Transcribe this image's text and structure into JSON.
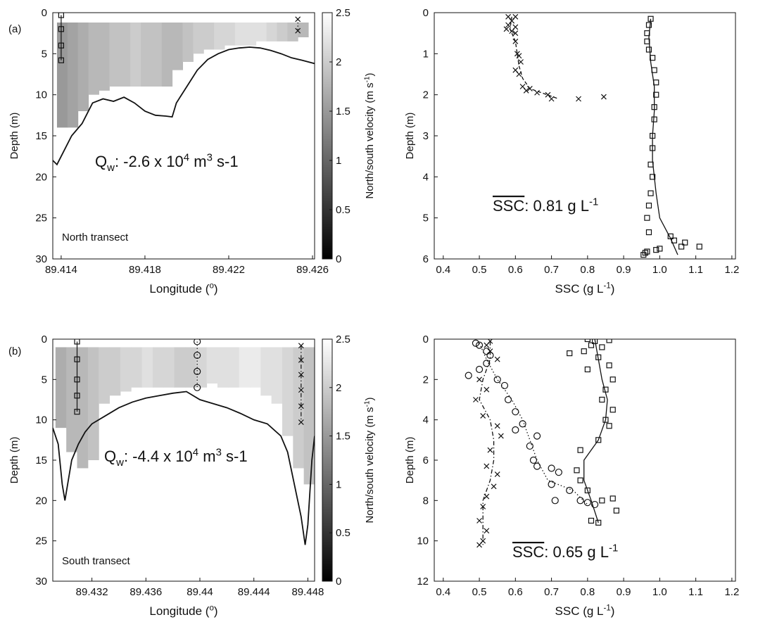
{
  "chart_data": [
    {
      "type": "transect",
      "panel_label": "(a)",
      "ylabel": "Depth (m)",
      "xlabel": [
        {
          "text": "Longitude ("
        },
        {
          "text": "o",
          "shift": "sup"
        },
        {
          "text": ")"
        }
      ],
      "annotation": [
        {
          "text": "Q"
        },
        {
          "text": "w",
          "shift": "sub"
        },
        {
          "text": ": -2.6 x 10"
        },
        {
          "text": "4",
          "shift": "sup"
        },
        {
          "text": " m"
        },
        {
          "text": "3",
          "shift": "sup"
        },
        {
          "text": " s-1"
        }
      ],
      "transect_label": "North transect",
      "xlim": [
        89.4136,
        89.4261
      ],
      "xticks": [
        89.414,
        89.418,
        89.422,
        89.426
      ],
      "ylim": [
        0,
        30
      ],
      "y_inverted": true,
      "yticks": [
        0,
        5,
        10,
        15,
        20,
        25,
        30
      ],
      "colorbar": {
        "label": [
          {
            "text": "North/south velocity (m s"
          },
          {
            "text": "-1",
            "shift": "sup"
          },
          {
            "text": ")"
          }
        ],
        "lim": [
          0,
          2.5
        ],
        "ticks": [
          0,
          0.5,
          1,
          1.5,
          2,
          2.5
        ]
      },
      "velocity": {
        "top": 1.2,
        "x": [
          89.4138,
          89.4143,
          89.4148,
          89.4153,
          89.4158,
          89.4163,
          89.4168,
          89.4173,
          89.4178,
          89.4183,
          89.4188,
          89.4193,
          89.4198,
          89.4203,
          89.4208,
          89.4213,
          89.4218,
          89.4223,
          89.4228,
          89.4233,
          89.4238,
          89.4243,
          89.4248,
          89.4253
        ],
        "bottom": [
          14,
          14,
          12,
          10,
          9.5,
          9,
          9,
          9,
          9,
          9,
          9,
          7,
          6,
          5,
          4.5,
          4.5,
          4,
          4,
          4,
          3.5,
          3.5,
          3.5,
          3.5,
          3
        ],
        "values": [
          1.5,
          1.6,
          1.7,
          1.8,
          1.8,
          1.9,
          1.9,
          2.0,
          1.9,
          1.9,
          1.8,
          1.8,
          1.9,
          2.0,
          2.0,
          2.1,
          2.1,
          2.2,
          2.2,
          2.2,
          2.1,
          2.0,
          1.9,
          1.8
        ]
      },
      "bathymetry": {
        "x": [
          89.4136,
          89.4138,
          89.414,
          89.4145,
          89.415,
          89.4155,
          89.416,
          89.4165,
          89.417,
          89.4175,
          89.418,
          89.4185,
          89.419,
          89.4193,
          89.4195,
          89.42,
          89.4205,
          89.421,
          89.4215,
          89.422,
          89.4225,
          89.423,
          89.4235,
          89.424,
          89.4245,
          89.425,
          89.4255,
          89.4261
        ],
        "y": [
          18,
          18.5,
          17.5,
          15,
          13.5,
          11,
          10.5,
          10.8,
          10.3,
          11,
          12,
          12.5,
          12.6,
          12.7,
          11,
          9,
          7,
          5.7,
          5,
          4.5,
          4.3,
          4.2,
          4.3,
          4.6,
          5,
          5.5,
          5.8,
          6.2
        ]
      },
      "stations": [
        {
          "marker": "square",
          "line": "solid",
          "x": 89.414,
          "depths": [
            0.3,
            2,
            4,
            5.8
          ]
        },
        {
          "marker": "cross",
          "line": "dotted",
          "x": 89.4253,
          "depths": [
            0.8,
            2.2
          ]
        }
      ]
    },
    {
      "type": "profile",
      "ylabel": "Depth (m)",
      "xlabel": [
        {
          "text": "SSC (g L"
        },
        {
          "text": "-1",
          "shift": "sup"
        },
        {
          "text": ")"
        }
      ],
      "annotation": [
        {
          "text": "SSC",
          "overline": true
        },
        {
          "text": ": 0.81 g L"
        },
        {
          "text": "-1",
          "shift": "sup"
        }
      ],
      "xlim": [
        0.375,
        1.21
      ],
      "xticks": [
        0.4,
        0.5,
        0.6,
        0.7,
        0.8,
        0.9,
        {
          "value": 1,
          "label": "1.0"
        },
        1.1,
        1.2
      ],
      "ylim": [
        0,
        6
      ],
      "y_inverted": true,
      "yticks": [
        0,
        1,
        2,
        3,
        4,
        5,
        6
      ],
      "series": [
        {
          "marker": "cross",
          "line": "dashed",
          "x": [
            0.58,
            0.6,
            0.59,
            0.58,
            0.6,
            0.575,
            0.59,
            0.6,
            0.6,
            0.605,
            0.61,
            0.615,
            0.6,
            0.61,
            0.62,
            0.64,
            0.63,
            0.66,
            0.69,
            0.7,
            0.775,
            0.845
          ],
          "y": [
            0.1,
            0.1,
            0.2,
            0.3,
            0.35,
            0.4,
            0.45,
            0.5,
            0.7,
            1.0,
            1.05,
            1.2,
            1.4,
            1.5,
            1.8,
            1.85,
            1.9,
            1.95,
            2.0,
            2.1,
            2.1,
            2.05
          ],
          "fit_x": [
            0.59,
            0.585,
            0.6,
            0.605,
            0.61,
            0.62,
            0.64,
            0.72
          ],
          "fit_y": [
            0.1,
            0.4,
            0.7,
            1.0,
            1.3,
            1.6,
            1.85,
            2.1
          ]
        },
        {
          "marker": "square",
          "line": "solid",
          "x": [
            0.975,
            0.97,
            0.965,
            0.965,
            0.97,
            0.98,
            0.985,
            0.99,
            0.99,
            0.985,
            0.985,
            0.98,
            0.98,
            0.975,
            0.98,
            0.975,
            0.97,
            0.965,
            0.97,
            1.04,
            1.07,
            1.11,
            1.0,
            0.99,
            0.965,
            0.96,
            0.955,
            1.03,
            1.06
          ],
          "y": [
            0.15,
            0.3,
            0.5,
            0.7,
            0.9,
            1.1,
            1.4,
            1.7,
            2.0,
            2.3,
            2.6,
            3.0,
            3.3,
            3.7,
            4.0,
            4.4,
            4.7,
            5.0,
            5.35,
            5.55,
            5.6,
            5.7,
            5.75,
            5.78,
            5.82,
            5.85,
            5.9,
            5.45,
            5.7
          ],
          "fit_x": [
            0.975,
            0.97,
            0.975,
            0.985,
            0.985,
            0.98,
            0.98,
            0.99,
            1.0,
            1.03,
            1.05
          ],
          "fit_y": [
            0.15,
            0.6,
            1.2,
            1.8,
            2.4,
            3.0,
            3.6,
            4.4,
            5.0,
            5.5,
            5.9
          ]
        }
      ]
    },
    {
      "type": "transect",
      "panel_label": "(b)",
      "ylabel": "Depth (m)",
      "xlabel": [
        {
          "text": "Longitude ("
        },
        {
          "text": "o",
          "shift": "sup"
        },
        {
          "text": ")"
        }
      ],
      "annotation": [
        {
          "text": "Q"
        },
        {
          "text": "w",
          "shift": "sub"
        },
        {
          "text": ": -4.4 x 10"
        },
        {
          "text": "4",
          "shift": "sup"
        },
        {
          "text": " m"
        },
        {
          "text": "3",
          "shift": "sup"
        },
        {
          "text": " s-1"
        }
      ],
      "transect_label": "South transect",
      "xlim": [
        89.4291,
        89.4485
      ],
      "xticks": [
        89.432,
        89.436,
        89.44,
        89.444,
        89.448
      ],
      "ylim": [
        0,
        30
      ],
      "y_inverted": true,
      "yticks": [
        0,
        5,
        10,
        15,
        20,
        25,
        30
      ],
      "colorbar": {
        "label": [
          {
            "text": "North/south velocity (m s"
          },
          {
            "text": "-1",
            "shift": "sup"
          },
          {
            "text": ")"
          }
        ],
        "lim": [
          0,
          2.5
        ],
        "ticks": [
          0,
          0.5,
          1,
          1.5,
          2,
          2.5
        ]
      },
      "velocity": {
        "top": 1.0,
        "x": [
          89.4293,
          89.4301,
          89.4309,
          89.4317,
          89.4325,
          89.4333,
          89.4341,
          89.4349,
          89.4357,
          89.4365,
          89.4373,
          89.4381,
          89.4389,
          89.4397,
          89.4405,
          89.4413,
          89.4421,
          89.4429,
          89.4437,
          89.4445,
          89.4453,
          89.4461,
          89.4469,
          89.4477
        ],
        "bottom": [
          11,
          14,
          16,
          15,
          8,
          7,
          6.5,
          6,
          6,
          6,
          6,
          6,
          6,
          6,
          5.5,
          6,
          6,
          6,
          6,
          7,
          8,
          12,
          16,
          18
        ],
        "values": [
          1.7,
          1.8,
          1.8,
          1.9,
          2.0,
          2.0,
          2.1,
          2.1,
          2.2,
          2.1,
          2.1,
          2.0,
          2.0,
          2.1,
          2.2,
          2.2,
          2.2,
          2.3,
          2.3,
          2.2,
          2.2,
          2.1,
          2.0,
          1.9
        ]
      },
      "bathymetry": {
        "x": [
          89.4291,
          89.4295,
          89.4298,
          89.43,
          89.4302,
          89.4305,
          89.431,
          89.4315,
          89.432,
          89.433,
          89.434,
          89.435,
          89.436,
          89.437,
          89.438,
          89.439,
          89.44,
          89.441,
          89.442,
          89.443,
          89.444,
          89.445,
          89.446,
          89.4465,
          89.447,
          89.4475,
          89.4478,
          89.448,
          89.4483,
          89.4485
        ],
        "y": [
          11,
          13,
          18,
          20,
          18,
          15,
          13,
          11.5,
          10.5,
          9.5,
          8.5,
          7.8,
          7.3,
          7,
          6.7,
          6.5,
          7.5,
          8,
          8.5,
          9.2,
          10,
          10.5,
          12,
          14,
          18,
          22,
          25.5,
          23,
          15,
          12
        ]
      },
      "stations": [
        {
          "marker": "square",
          "line": "solid",
          "x": 89.4309,
          "depths": [
            0.3,
            2.5,
            5,
            7,
            9
          ]
        },
        {
          "marker": "circle",
          "line": "dotted",
          "x": 89.4398,
          "depths": [
            0.3,
            2,
            4,
            6
          ]
        },
        {
          "marker": "cross",
          "line": "dashdot",
          "x": 89.4475,
          "depths": [
            0.8,
            2.6,
            4.4,
            6.3,
            8.3,
            10.3
          ]
        }
      ]
    },
    {
      "type": "profile",
      "ylabel": "Depth (m)",
      "xlabel": [
        {
          "text": "SSC (g L"
        },
        {
          "text": "-1",
          "shift": "sup"
        },
        {
          "text": ")"
        }
      ],
      "annotation": [
        {
          "text": "SSC",
          "overline": true
        },
        {
          "text": ": 0.65 g L"
        },
        {
          "text": "-1",
          "shift": "sup"
        }
      ],
      "xlim": [
        0.375,
        1.21
      ],
      "xticks": [
        0.4,
        0.5,
        0.6,
        0.7,
        0.8,
        0.9,
        {
          "value": 1,
          "label": "1.0"
        },
        1.1,
        1.2
      ],
      "ylim": [
        0,
        12
      ],
      "y_inverted": true,
      "yticks": [
        0,
        2,
        4,
        6,
        8,
        10,
        12
      ],
      "series": [
        {
          "marker": "square",
          "line": "solid",
          "x": [
            0.8,
            0.86,
            0.82,
            0.81,
            0.84,
            0.75,
            0.79,
            0.83,
            0.86,
            0.8,
            0.87,
            0.85,
            0.84,
            0.87,
            0.85,
            0.86,
            0.83,
            0.78,
            0.77,
            0.78,
            0.8,
            0.84,
            0.88,
            0.81,
            0.83,
            0.87
          ],
          "y": [
            0,
            0.05,
            0.1,
            0.3,
            0.4,
            0.7,
            0.6,
            0.9,
            1.3,
            1.5,
            2,
            2.5,
            3,
            3.5,
            4,
            4.3,
            5,
            5.5,
            6.5,
            7,
            7.5,
            8,
            8.5,
            9,
            9.1,
            7.9
          ],
          "fit_x": [
            0.82,
            0.83,
            0.84,
            0.855,
            0.85,
            0.83,
            0.79,
            0.79,
            0.81,
            0.83
          ],
          "fit_y": [
            0,
            1,
            2,
            3,
            4,
            5,
            6,
            7,
            8,
            9.1
          ]
        },
        {
          "marker": "circle",
          "line": "dotted",
          "x": [
            0.49,
            0.5,
            0.52,
            0.53,
            0.52,
            0.47,
            0.5,
            0.55,
            0.57,
            0.58,
            0.6,
            0.62,
            0.6,
            0.66,
            0.64,
            0.65,
            0.66,
            0.7,
            0.72,
            0.7,
            0.75,
            0.78,
            0.8,
            0.71,
            0.82
          ],
          "y": [
            0.2,
            0.3,
            0.6,
            0.8,
            1.2,
            1.8,
            1.5,
            2,
            2.3,
            3,
            3.6,
            4.2,
            4.5,
            4.8,
            5.3,
            6,
            6.3,
            6.4,
            6.6,
            7.2,
            7.5,
            8,
            8.1,
            8,
            8.2
          ],
          "fit_x": [
            0.5,
            0.52,
            0.55,
            0.59,
            0.62,
            0.64,
            0.66,
            0.69,
            0.76,
            0.8
          ],
          "fit_y": [
            0.2,
            1,
            2,
            3,
            4,
            5,
            6,
            7,
            7.5,
            8.2
          ]
        },
        {
          "marker": "cross",
          "line": "dashdot",
          "x": [
            0.53,
            0.52,
            0.53,
            0.55,
            0.5,
            0.52,
            0.49,
            0.51,
            0.55,
            0.56,
            0.53,
            0.52,
            0.55,
            0.54,
            0.52,
            0.51,
            0.5,
            0.52,
            0.51,
            0.5
          ],
          "y": [
            0.1,
            0.3,
            0.6,
            1,
            2,
            2.5,
            3,
            3.8,
            4.3,
            4.8,
            5.5,
            6.3,
            6.7,
            7.3,
            7.8,
            8.3,
            9,
            9.5,
            10,
            10.2
          ],
          "fit_x": [
            0.53,
            0.53,
            0.51,
            0.5,
            0.53,
            0.54,
            0.54,
            0.53,
            0.51,
            0.51,
            0.51
          ],
          "fit_y": [
            0.1,
            1,
            2,
            3,
            4,
            5,
            6,
            7,
            8,
            9,
            10.2
          ]
        }
      ]
    }
  ]
}
